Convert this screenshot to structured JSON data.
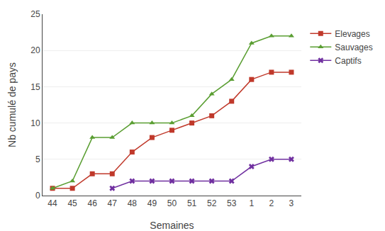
{
  "chart_data": {
    "type": "line",
    "xlabel": "Semaines",
    "ylabel": "Nb cumulé de pays",
    "categories": [
      "44",
      "45",
      "46",
      "47",
      "48",
      "49",
      "50",
      "51",
      "52",
      "53",
      "1",
      "2",
      "3"
    ],
    "series": [
      {
        "name": "Elevages",
        "color": "#c0392b",
        "marker": "square",
        "values": [
          1,
          1,
          3,
          3,
          6,
          8,
          9,
          10,
          11,
          13,
          16,
          17,
          17
        ]
      },
      {
        "name": "Sauvages",
        "color": "#5a9e32",
        "marker": "triangle-up",
        "values": [
          1,
          2,
          8,
          8,
          10,
          10,
          10,
          11,
          14,
          16,
          21,
          22,
          22
        ]
      },
      {
        "name": "Captifs",
        "color": "#7030a0",
        "marker": "x",
        "values": [
          null,
          null,
          null,
          1,
          2,
          2,
          2,
          2,
          2,
          2,
          4,
          5,
          5
        ]
      }
    ],
    "ylim": [
      0,
      25
    ],
    "yticks": [
      0,
      5,
      10,
      15,
      20,
      25
    ],
    "grid": true,
    "legend": "right"
  }
}
